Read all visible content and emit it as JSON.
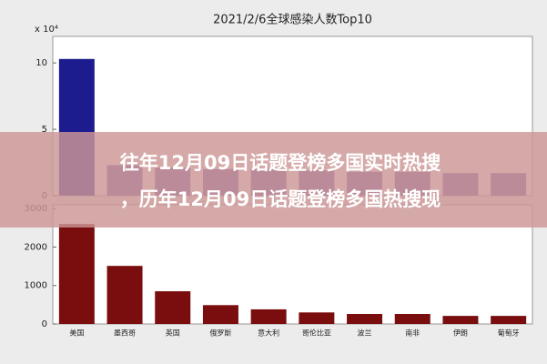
{
  "chart_data": [
    {
      "type": "bar",
      "title": "2021/2/6全球感染人数Top10",
      "y_multiplier": "x 10⁴",
      "categories": [
        null,
        null,
        null,
        null,
        null,
        null,
        null,
        null,
        null,
        null
      ],
      "values": [
        10.3,
        2.3,
        2.1,
        2.0,
        2.0,
        1.9,
        1.8,
        1.8,
        1.7,
        1.7
      ],
      "colors": [
        "#1c1c8e",
        "#6a5aa8",
        "#6a5aa8",
        "#6a5aa8",
        "#6a5aa8",
        "#6a5aa8",
        "#6a5aa8",
        "#6a5aa8",
        "#6a5aa8",
        "#6a5aa8"
      ],
      "ylim": [
        0,
        12
      ],
      "yticks": [
        0,
        5,
        10
      ]
    },
    {
      "type": "bar",
      "categories": [
        "美国",
        "墨西哥",
        "英国",
        "俄罗斯",
        "意大利",
        "哥伦比亚",
        "波兰",
        "南非",
        "伊朗",
        "葡萄牙"
      ],
      "values": [
        2600,
        1510,
        850,
        490,
        380,
        300,
        260,
        260,
        210,
        210
      ],
      "colors": [
        "#7a0e0e",
        "#7a0e0e",
        "#7a0e0e",
        "#7a0e0e",
        "#7a0e0e",
        "#7a0e0e",
        "#7a0e0e",
        "#7a0e0e",
        "#7a0e0e",
        "#7a0e0e"
      ],
      "ylim": [
        0,
        3100
      ],
      "yticks": [
        0,
        1000,
        2000,
        3000
      ]
    }
  ],
  "banner": {
    "lines": [
      "往年12月09日话题登榜多国实时热搜",
      "，历年12月09日话题登榜多国热搜现"
    ]
  }
}
